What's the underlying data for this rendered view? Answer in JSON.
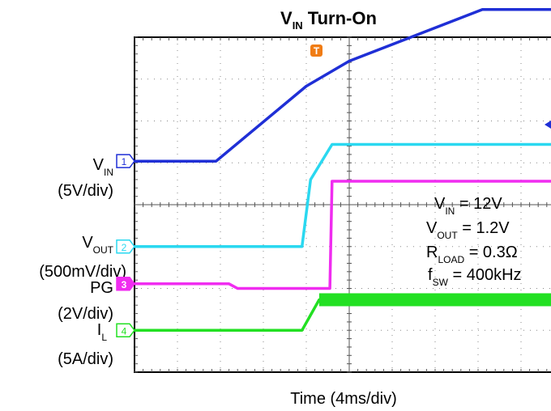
{
  "chart_data": {
    "type": "line",
    "title": {
      "main": "V",
      "sub": "IN",
      "rest": " Turn-On"
    },
    "xlabel": "Time (4ms/div)",
    "x_scale": "4ms/div",
    "divisions": {
      "x": 10,
      "y": 8
    },
    "grid": true,
    "trigger_marker": "T",
    "channels": [
      {
        "number": "1",
        "name": "V",
        "sub": "IN",
        "scale": "(5V/div)",
        "color": "#1f2fd6",
        "x": [
          0,
          1.9,
          4.0,
          5.0,
          8.1,
          10.0
        ],
        "y": [
          5.04,
          5.04,
          6.83,
          7.43,
          8.66,
          8.66
        ]
      },
      {
        "number": "2",
        "name": "V",
        "sub": "OUT",
        "scale": "(500mV/div)",
        "color": "#2ad8f0",
        "x": [
          0,
          3.9,
          4.1,
          4.6,
          10.0
        ],
        "y": [
          3.0,
          3.0,
          4.6,
          5.44,
          5.44
        ]
      },
      {
        "number": "3",
        "name": "PG",
        "sub": "",
        "scale": "(2V/div)",
        "color": "#f02cf0",
        "x": [
          0,
          2.2,
          2.4,
          4.55,
          4.6,
          10.0
        ],
        "y": [
          2.11,
          2.11,
          2.0,
          2.0,
          4.56,
          4.56
        ]
      },
      {
        "number": "4",
        "name": "I",
        "sub": "L",
        "scale": "(5A/div)",
        "color": "#22e022",
        "x": [
          0,
          3.9,
          4.3,
          10.0
        ],
        "y": [
          1.0,
          1.0,
          1.73,
          1.73
        ],
        "ripple_band_from_x": 4.3
      }
    ],
    "annotations": [
      {
        "main": "V",
        "sub": "IN",
        "rest": " = 12V"
      },
      {
        "main": "V",
        "sub": "OUT",
        "rest": " = 1.2V"
      },
      {
        "main": "R",
        "sub": "LOAD",
        "rest": " = 0.3Ω"
      },
      {
        "main": "f",
        "sub": "SW",
        "rest": " = 400kHz"
      }
    ]
  },
  "colors": {
    "trigger": "#f07c14",
    "marker_arrow": "#1f2fd6",
    "grid": "#888888",
    "frame": "#000000"
  }
}
